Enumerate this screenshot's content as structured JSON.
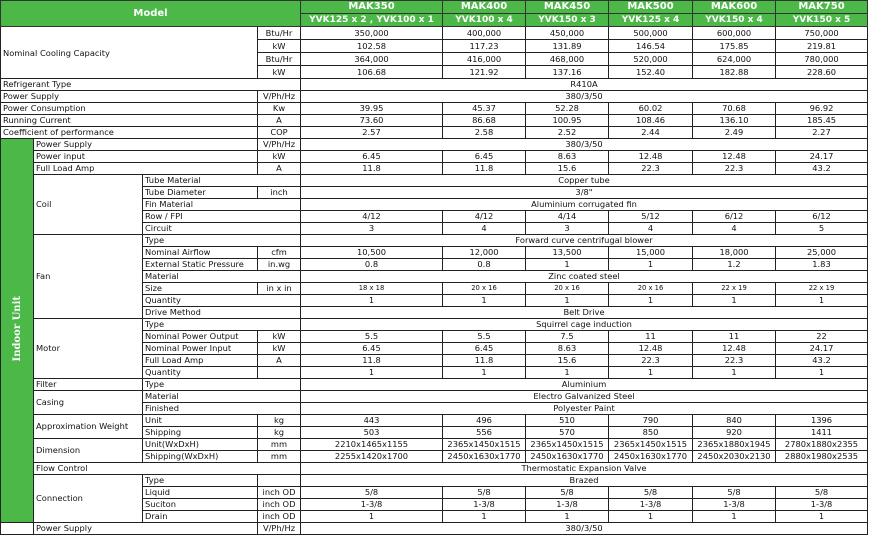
{
  "colors": {
    "header_green": "#4cb848",
    "border": "#222222"
  },
  "header": {
    "model_label": "Model",
    "models": [
      {
        "name": "MAK350",
        "config": "YVK125 x 2 , YVK100 x 1"
      },
      {
        "name": "MAK400",
        "config": "YVK100 x 4"
      },
      {
        "name": "MAK450",
        "config": "YVK150 x 3"
      },
      {
        "name": "MAK500",
        "config": "YVK125 x 4"
      },
      {
        "name": "MAK600",
        "config": "YVK150 x 4"
      },
      {
        "name": "MAK750",
        "config": "YVK150 x 5"
      }
    ]
  },
  "top_rows": [
    {
      "label": "Nominal Cooling Capacity",
      "subrows": [
        {
          "unit": "Btu/Hr",
          "values": [
            "350,000",
            "400,000",
            "450,000",
            "500,000",
            "600,000",
            "750,000"
          ]
        },
        {
          "unit": "kW",
          "values": [
            "102.58",
            "117.23",
            "131.89",
            "146.54",
            "175.85",
            "219.81"
          ]
        },
        {
          "unit": "Btu/Hr",
          "values": [
            "364,000",
            "416,000",
            "468,000",
            "520,000",
            "624,000",
            "780,000"
          ]
        },
        {
          "unit": "kW",
          "values": [
            "106.68",
            "121.92",
            "137.16",
            "152.40",
            "182.88",
            "228.60"
          ]
        }
      ]
    },
    {
      "label": "Refrigerant Type",
      "all": "R410A"
    },
    {
      "label": "Power Supply",
      "unit": "V/Ph/Hz",
      "all": "380/3/50"
    },
    {
      "label": "Power Consumption",
      "unit": "Kw",
      "values": [
        "39.95",
        "45.37",
        "52.28",
        "60.02",
        "70.68",
        "96.92"
      ]
    },
    {
      "label": "Running Current",
      "unit": "A",
      "values": [
        "73.60",
        "86.68",
        "100.95",
        "108.46",
        "136.10",
        "185.45"
      ]
    },
    {
      "label": "Coefficient of performance",
      "unit": "COP",
      "values": [
        "2.57",
        "2.58",
        "2.52",
        "2.44",
        "2.49",
        "2.27"
      ]
    }
  ],
  "indoor": {
    "label": "Indoor Unit",
    "rows": [
      {
        "label": "Power Supply",
        "unit": "V/Ph/Hz",
        "all": "380/3/50"
      },
      {
        "label": "Power input",
        "unit": "kW",
        "values": [
          "6.45",
          "6.45",
          "8.63",
          "12.48",
          "12.48",
          "24.17"
        ]
      },
      {
        "label": "Full Load Amp",
        "unit": "A",
        "values": [
          "11.8",
          "11.8",
          "15.6",
          "22.3",
          "22.3",
          "43.2"
        ]
      },
      {
        "group": "Coil",
        "items": [
          {
            "label": "Tube Material",
            "all": "Copper tube"
          },
          {
            "label": "Tube Diameter",
            "unit": "inch",
            "all": "3/8\""
          },
          {
            "label": "Fin Material",
            "all": "Aluminium corrugated fin"
          },
          {
            "label": "Row / FPI",
            "values": [
              "4/12",
              "4/12",
              "4/14",
              "5/12",
              "6/12",
              "6/12"
            ]
          },
          {
            "label": "Circuit",
            "values": [
              "3",
              "4",
              "3",
              "4",
              "4",
              "5"
            ]
          }
        ]
      },
      {
        "group": "Fan",
        "items": [
          {
            "label": "Type",
            "all": "Forward curve centrifugal blower"
          },
          {
            "label": "Nominal Airflow",
            "unit": "cfm",
            "values": [
              "10,500",
              "12,000",
              "13,500",
              "15,000",
              "18,000",
              "25,000"
            ]
          },
          {
            "label": "External Static Pressure",
            "unit": "in.wg",
            "values": [
              "0.8",
              "0.8",
              "1",
              "1",
              "1.2",
              "1.83"
            ]
          },
          {
            "label": "Material",
            "all": "Zinc coated steel"
          },
          {
            "label": "Size",
            "unit": "in x in",
            "values": [
              "18 x 18",
              "20 x 16",
              "20 x 16",
              "20 x 16",
              "22 x 19",
              "22 x 19"
            ]
          },
          {
            "label": "Quantity",
            "values": [
              "1",
              "1",
              "1",
              "1",
              "1",
              "1"
            ]
          },
          {
            "label": "Drive Method",
            "all": "Belt Drive"
          }
        ]
      },
      {
        "group": "Motor",
        "items": [
          {
            "label": "Type",
            "all": "Squirrel cage induction"
          },
          {
            "label": "Nominal Power Output",
            "unit": "kW",
            "values": [
              "5.5",
              "5.5",
              "7.5",
              "11",
              "11",
              "22"
            ]
          },
          {
            "label": "Nominal Power Input",
            "unit": "kW",
            "values": [
              "6.45",
              "6.45",
              "8.63",
              "12.48",
              "12.48",
              "24.17"
            ]
          },
          {
            "label": "Full Load Amp",
            "unit": "A",
            "values": [
              "11.8",
              "11.8",
              "15.6",
              "22.3",
              "22.3",
              "43.2"
            ]
          },
          {
            "label": "Quantity",
            "unit": "",
            "values": [
              "1",
              "1",
              "1",
              "1",
              "1",
              "1"
            ]
          }
        ]
      },
      {
        "group": "Filter",
        "items": [
          {
            "label": "Type",
            "all": "Aluminium"
          }
        ]
      },
      {
        "group": "Casing",
        "items": [
          {
            "label": "Material",
            "all": "Electro Galvanized Steel"
          },
          {
            "label": "Finished",
            "all": "Polyester Paint"
          }
        ]
      },
      {
        "group": "Approximation  Weight",
        "items": [
          {
            "label": "Unit",
            "unit": "kg",
            "values": [
              "443",
              "496",
              "510",
              "790",
              "840",
              "1396"
            ]
          },
          {
            "label": "Shipping",
            "unit": "kg",
            "values": [
              "503",
              "556",
              "570",
              "850",
              "920",
              "1411"
            ]
          }
        ]
      },
      {
        "group": "Dimension",
        "items": [
          {
            "label": "Unit(WxDxH)",
            "unit": "mm",
            "values": [
              "2210x1465x1155",
              "2365x1450x1515",
              "2365x1450x1515",
              "2365x1450x1515",
              "2365x1880x1945",
              "2780x1880x2355"
            ]
          },
          {
            "label": "Shipping(WxDxH)",
            "unit": "mm",
            "values": [
              "2255x1420x1700",
              "2450x1630x1770",
              "2450x1630x1770",
              "2450x1630x1770",
              "2450x2030x2130",
              "2880x1980x2535"
            ]
          }
        ]
      },
      {
        "label": "Flow Control",
        "all": "Thermostatic Expansion Valve",
        "span3": true
      },
      {
        "group": "Connection",
        "items": [
          {
            "label": "Type",
            "unit": "",
            "all": "Brazed"
          },
          {
            "label": "Liquid",
            "unit": "inch OD",
            "values": [
              "5/8",
              "5/8",
              "5/8",
              "5/8",
              "5/8",
              "5/8"
            ]
          },
          {
            "label": "Suciton",
            "unit": "inch OD",
            "values": [
              "1-3/8",
              "1-3/8",
              "1-3/8",
              "1-3/8",
              "1-3/8",
              "1-3/8"
            ]
          },
          {
            "label": "Drain",
            "unit": "inch OD",
            "values": [
              "1",
              "1",
              "1",
              "1",
              "1",
              "1"
            ]
          }
        ]
      }
    ]
  },
  "cutoff_row": {
    "label": "Power Supply",
    "unit": "V/Ph/Hz",
    "all": "380/3/50"
  }
}
